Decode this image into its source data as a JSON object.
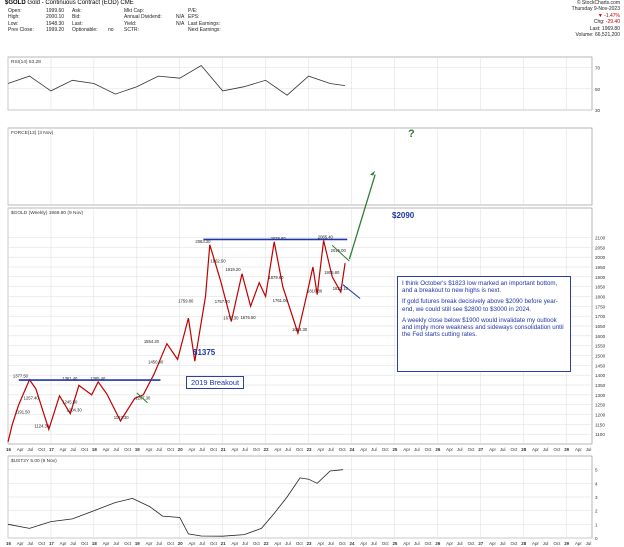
{
  "header": {
    "symbol": "$GOLD",
    "name": "Gold - Continuous Contract (EOD)",
    "exchange": "CME",
    "source": "© StockCharts.com",
    "col1": [
      [
        "Open:",
        "1999.60"
      ],
      [
        "High:",
        "2000.10"
      ],
      [
        "Low:",
        "1948.30"
      ],
      [
        "Prev Close:",
        "1999.20"
      ]
    ],
    "col2": [
      [
        "Ask:",
        ""
      ],
      [
        "Bid:",
        ""
      ],
      [
        "Last:",
        ""
      ],
      [
        "Optionable:",
        "no"
      ]
    ],
    "col3": [
      [
        "Mkt Cap:",
        ""
      ],
      [
        "Annual Dividend:",
        "N/A"
      ],
      [
        "Yield:",
        "N/A"
      ],
      [
        "SCTR:",
        ""
      ]
    ],
    "col4": [
      [
        "P/E:",
        ""
      ],
      [
        "EPS:",
        ""
      ],
      [
        "Last Earnings:",
        ""
      ],
      [
        "Next Earnings:",
        ""
      ]
    ],
    "right": [
      [
        "Thursday  9-Nov-2023",
        ""
      ],
      [
        "",
        "-1.47%"
      ],
      [
        "Chg:",
        "-29.40"
      ],
      [
        "Last:",
        "1969.80"
      ],
      [
        "Volume:",
        "66,521,200"
      ]
    ]
  },
  "annotations": {
    "level_2090": "$2090",
    "level_1375": "$1375",
    "breakout": "2019 Breakout",
    "question": "?",
    "para1": "I think October's $1823 low marked an important bottom, and a breakout to new highs is next.",
    "para2": "If gold futures break decisively above $2090 before year-end, we could still see $2800 to $3000 in 2024.",
    "para3": "A weekly close below $1900 would invalidate my outlook and imply more weakness and sideways consolidation until the Fed starts cutting rates."
  },
  "colors": {
    "price": "#c00000",
    "rsi": "#333333",
    "usd": "#222222",
    "accent": "#1f36a6",
    "arrow": "#2e7d32",
    "grid": "#dddddd"
  },
  "chart_data": [
    {
      "type": "line",
      "title": "RSI(14) 53.28",
      "ylim": [
        30,
        80
      ],
      "yticks": [
        30,
        50,
        70
      ],
      "series": [
        {
          "name": "RSI(14)",
          "x": [
            2016.0,
            2016.5,
            2017.0,
            2017.5,
            2018.0,
            2018.5,
            2019.0,
            2019.5,
            2020.0,
            2020.5,
            2021.0,
            2021.5,
            2022.0,
            2022.5,
            2023.0,
            2023.5,
            2023.85
          ],
          "values": [
            55,
            62,
            48,
            58,
            55,
            45,
            52,
            62,
            60,
            72,
            48,
            52,
            58,
            44,
            62,
            55,
            53
          ]
        }
      ]
    },
    {
      "type": "line",
      "title": "FORCE(13) (3 Nov)",
      "ylim": [
        -1.5,
        1.5
      ],
      "yticks": [],
      "series": [
        {
          "name": "FORCE(13)",
          "x": [],
          "values": []
        }
      ]
    },
    {
      "type": "line",
      "title": "$GOLD (Weekly) 1969.80 (9 Nov)",
      "xlabel": "",
      "ylabel": "",
      "ylim": [
        1050,
        2250
      ],
      "yticks": [
        1100,
        1150,
        1200,
        1250,
        1300,
        1350,
        1400,
        1450,
        1500,
        1550,
        1600,
        1650,
        1700,
        1750,
        1800,
        1850,
        1900,
        1950,
        2000,
        2050,
        2100
      ],
      "xticks": [
        "16",
        "Apr",
        "Jul",
        "Oct",
        "17",
        "Apr",
        "Jul",
        "Oct",
        "18",
        "Apr",
        "Jul",
        "Oct",
        "19",
        "Apr",
        "Jul",
        "Oct",
        "20",
        "Apr",
        "Jul",
        "Oct",
        "21",
        "Apr",
        "Jul",
        "Oct",
        "22",
        "Apr",
        "Jul",
        "Oct",
        "23",
        "Apr",
        "Jul",
        "Oct",
        "24",
        "Apr",
        "Jul",
        "Oct",
        "25",
        "Apr",
        "Jul",
        "Oct",
        "26",
        "Apr",
        "Jul",
        "Oct",
        "27",
        "Apr",
        "Jul",
        "Oct",
        "28",
        "Apr",
        "Jul",
        "Oct",
        "29",
        "Apr",
        "Jul"
      ],
      "xlim": [
        2016.0,
        2029.6
      ],
      "series": [
        {
          "name": "$GOLD",
          "x": [
            2016.0,
            2016.1,
            2016.25,
            2016.5,
            2016.65,
            2016.95,
            2017.2,
            2017.45,
            2017.65,
            2017.95,
            2018.1,
            2018.3,
            2018.62,
            2018.95,
            2019.15,
            2019.4,
            2019.7,
            2019.95,
            2020.2,
            2020.35,
            2020.6,
            2020.7,
            2020.95,
            2021.2,
            2021.45,
            2021.65,
            2021.85,
            2022.0,
            2022.2,
            2022.4,
            2022.75,
            2022.95,
            2023.1,
            2023.2,
            2023.35,
            2023.55,
            2023.75,
            2023.85
          ],
          "values": [
            1060,
            1150,
            1250,
            1377,
            1330,
            1124,
            1295,
            1204,
            1348,
            1300,
            1366,
            1305,
            1167,
            1282,
            1300,
            1405,
            1560,
            1480,
            1690,
            1471,
            1800,
            2063,
            1880,
            1673,
            1916,
            1750,
            1870,
            1800,
            2078,
            1850,
            1614,
            1800,
            1950,
            1810,
            2085,
            1900,
            1823,
            1970
          ]
        }
      ],
      "labels": [
        {
          "x": 2016.3,
          "y": 1377,
          "text": "1377.50"
        },
        {
          "x": 2016.35,
          "y": 1195,
          "text": "1191.50"
        },
        {
          "x": 2016.55,
          "y": 1265,
          "text": "1257.40"
        },
        {
          "x": 2016.8,
          "y": 1124,
          "text": "1124.30"
        },
        {
          "x": 2017.45,
          "y": 1366,
          "text": "1361.40"
        },
        {
          "x": 2017.55,
          "y": 1204,
          "text": "1204.30"
        },
        {
          "x": 2017.45,
          "y": 1245,
          "text": "1245.50"
        },
        {
          "x": 2018.1,
          "y": 1366,
          "text": "1365.40"
        },
        {
          "x": 2018.65,
          "y": 1167,
          "text": "1167.30"
        },
        {
          "x": 2019.15,
          "y": 1267,
          "text": "1267.30"
        },
        {
          "x": 2019.35,
          "y": 1554,
          "text": "1554.20"
        },
        {
          "x": 2019.45,
          "y": 1450,
          "text": "1450.90"
        },
        {
          "x": 2020.15,
          "y": 1759,
          "text": "1759.80"
        },
        {
          "x": 2020.55,
          "y": 2063,
          "text": "2063.20"
        },
        {
          "x": 2020.9,
          "y": 1962,
          "text": "1962.50"
        },
        {
          "x": 2021.0,
          "y": 1757,
          "text": "1757.30"
        },
        {
          "x": 2021.2,
          "y": 1673,
          "text": "1673.30"
        },
        {
          "x": 2021.25,
          "y": 1919,
          "text": "1919.20"
        },
        {
          "x": 2021.6,
          "y": 1676,
          "text": "1676.50"
        },
        {
          "x": 2022.25,
          "y": 1879,
          "text": "1879.60"
        },
        {
          "x": 2022.35,
          "y": 1761,
          "text": "1761.00"
        },
        {
          "x": 2022.3,
          "y": 2078,
          "text": "2078.80"
        },
        {
          "x": 2022.8,
          "y": 1614,
          "text": "1614.30"
        },
        {
          "x": 2023.15,
          "y": 1810,
          "text": "1810.80"
        },
        {
          "x": 2023.4,
          "y": 2085,
          "text": "2085.40"
        },
        {
          "x": 2023.55,
          "y": 1905,
          "text": "1905.80"
        },
        {
          "x": 2023.7,
          "y": 2015,
          "text": "2015.00"
        },
        {
          "x": 2023.75,
          "y": 1823,
          "text": "1823.10"
        }
      ]
    },
    {
      "type": "line",
      "title": "$UST2Y 5.00 (9 Nov)",
      "ylim": [
        0,
        6
      ],
      "yticks": [
        0,
        1,
        2,
        3,
        4,
        5
      ],
      "series": [
        {
          "name": "$UST2Y",
          "x": [
            2016.0,
            2016.5,
            2017.0,
            2017.5,
            2018.0,
            2018.5,
            2018.9,
            2019.3,
            2019.6,
            2020.0,
            2020.2,
            2020.5,
            2021.0,
            2021.5,
            2021.9,
            2022.2,
            2022.5,
            2022.8,
            2023.0,
            2023.2,
            2023.5,
            2023.8
          ],
          "values": [
            1.0,
            0.7,
            1.2,
            1.4,
            2.0,
            2.6,
            2.9,
            2.3,
            1.6,
            1.5,
            0.3,
            0.15,
            0.13,
            0.25,
            0.7,
            1.8,
            3.0,
            4.4,
            4.3,
            4.0,
            4.9,
            5.0
          ]
        }
      ]
    }
  ]
}
